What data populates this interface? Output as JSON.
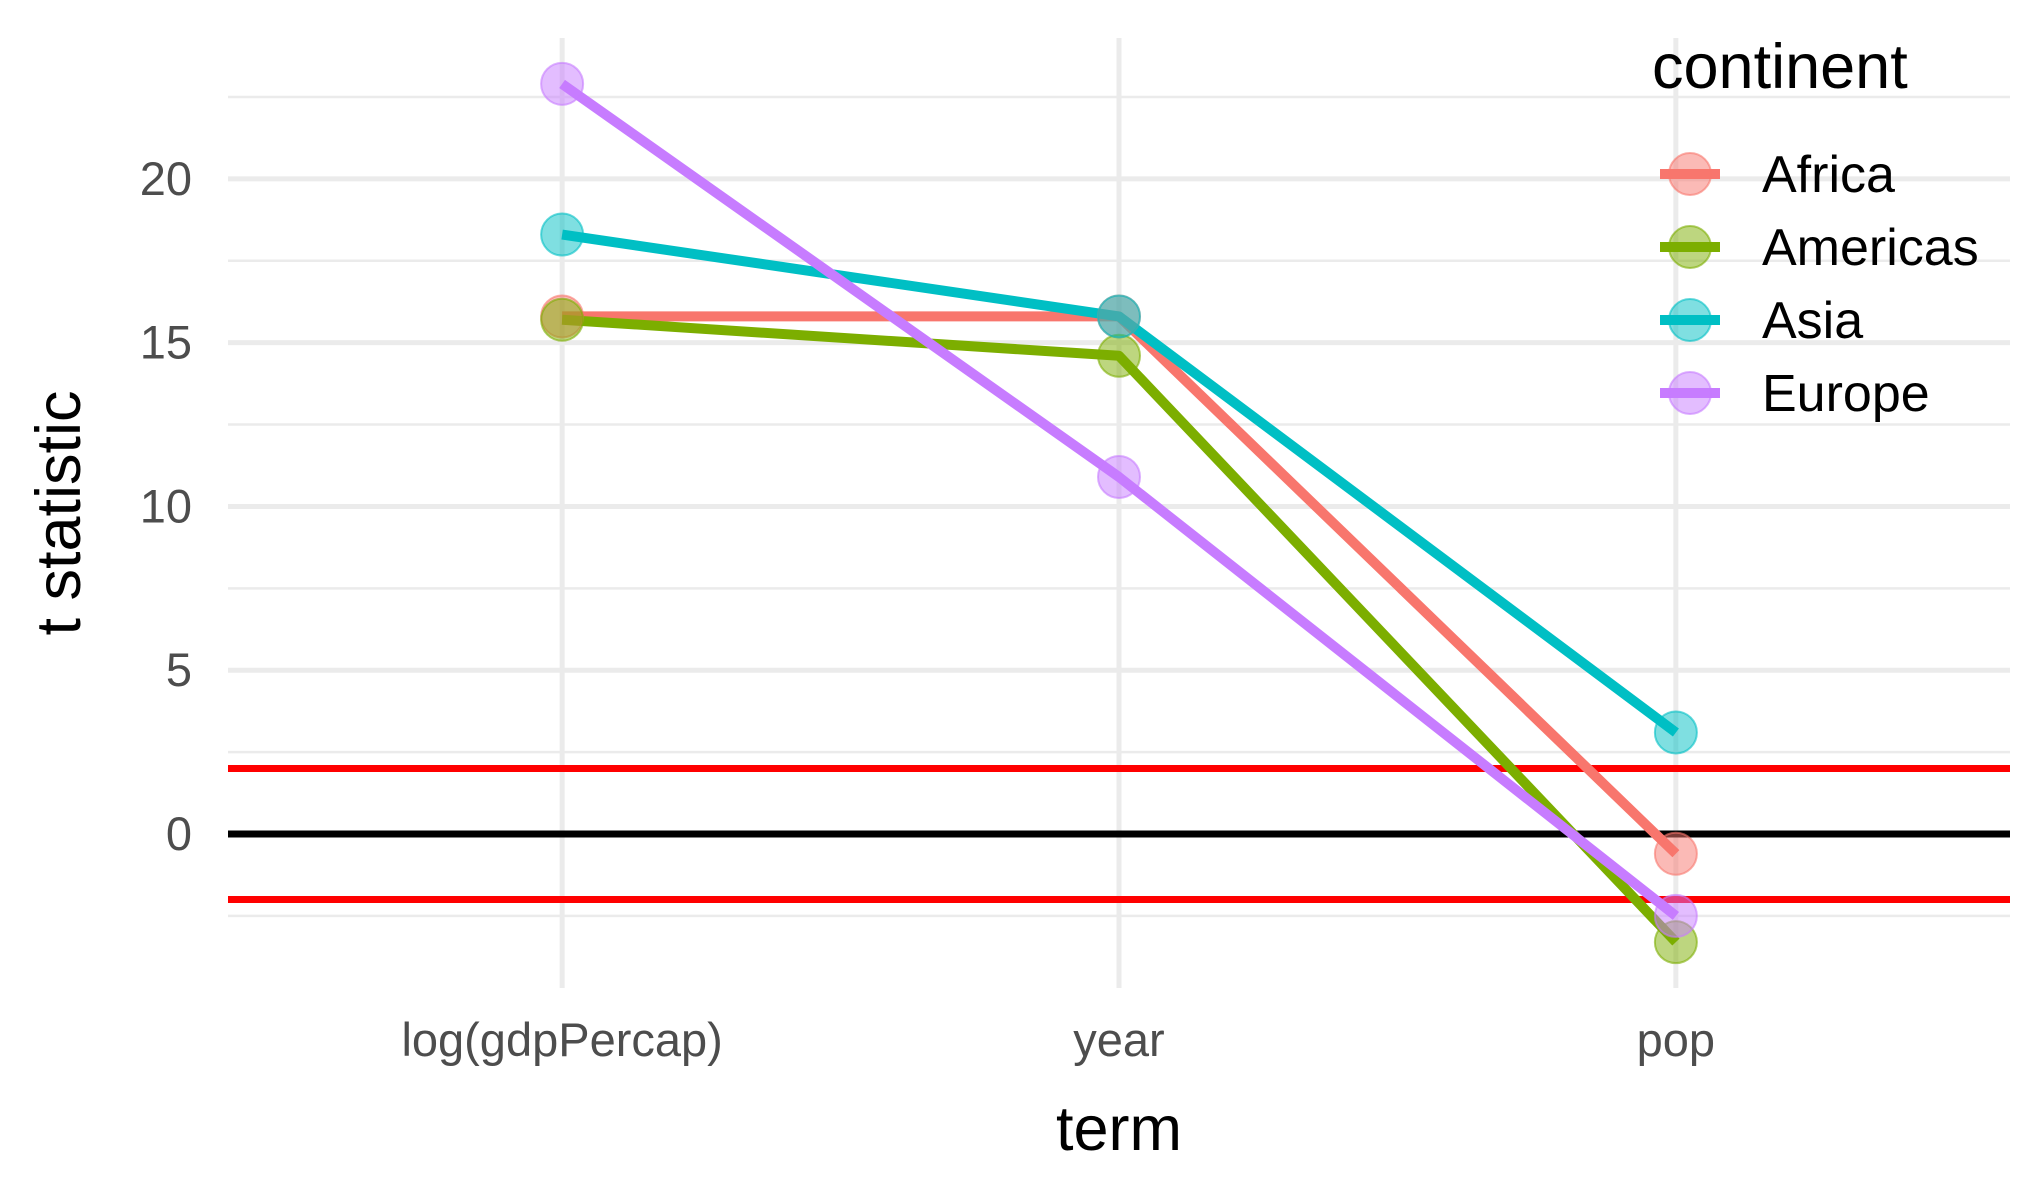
{
  "chart_data": {
    "type": "line",
    "xlabel": "term",
    "ylabel": "t statistic",
    "categories": [
      "log(gdpPercap)",
      "year",
      "pop"
    ],
    "ylim": [
      -4.7,
      24.3
    ],
    "y_ticks": [
      0,
      5,
      10,
      15,
      20
    ],
    "grid": true,
    "series": [
      {
        "name": "Africa",
        "color": "#F8766D",
        "values": [
          15.8,
          15.8,
          -0.6
        ]
      },
      {
        "name": "Americas",
        "color": "#7CAE00",
        "values": [
          15.7,
          14.6,
          -3.3
        ]
      },
      {
        "name": "Asia",
        "color": "#00BFC4",
        "values": [
          18.3,
          15.8,
          3.1
        ]
      },
      {
        "name": "Europe",
        "color": "#C77CFF",
        "values": [
          22.9,
          10.9,
          -2.5
        ]
      }
    ],
    "reference_lines": [
      {
        "y": 2,
        "color": "#FF0000"
      },
      {
        "y": 0,
        "color": "#000000"
      },
      {
        "y": -2,
        "color": "#FF0000"
      }
    ],
    "legend": {
      "title": "continent",
      "position": "top-right"
    }
  }
}
